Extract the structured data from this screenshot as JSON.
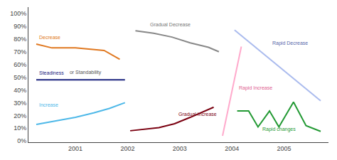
{
  "chart_data": {
    "type": "line",
    "xlim": [
      2000.1,
      2005.85
    ],
    "ylim": [
      -0.01,
      1.05
    ],
    "xticks": [
      2001,
      2002,
      2003,
      2004,
      2005
    ],
    "yticks": [
      {
        "value": 0.0,
        "label": "0%"
      },
      {
        "value": 0.1,
        "label": "10%"
      },
      {
        "value": 0.2,
        "label": "20%"
      },
      {
        "value": 0.3,
        "label": "30%"
      },
      {
        "value": 0.4,
        "label": "40%"
      },
      {
        "value": 0.5,
        "label": "50%"
      },
      {
        "value": 0.6,
        "label": "60%"
      },
      {
        "value": 0.7,
        "label": "70%"
      },
      {
        "value": 0.8,
        "label": "80%"
      },
      {
        "value": 0.9,
        "label": "90%"
      },
      {
        "value": 1.0,
        "label": "100%"
      }
    ],
    "grid": false,
    "series": [
      {
        "color": "#e07820",
        "x": [
          2000.25,
          2000.55,
          2001.0,
          2001.3,
          2001.55,
          2001.85
        ],
        "values": [
          0.76,
          0.73,
          0.73,
          0.72,
          0.71,
          0.64
        ]
      },
      {
        "color": "#1a237e",
        "x": [
          2000.25,
          2001.95
        ],
        "values": [
          0.48,
          0.48
        ]
      },
      {
        "color": "#4db8e8",
        "x": [
          2000.25,
          2000.65,
          2001.0,
          2001.35,
          2001.65,
          2001.95
        ],
        "values": [
          0.13,
          0.16,
          0.185,
          0.22,
          0.255,
          0.3
        ]
      },
      {
        "color": "#888888",
        "x": [
          2002.15,
          2002.5,
          2002.85,
          2003.2,
          2003.55,
          2003.75
        ],
        "values": [
          0.865,
          0.845,
          0.815,
          0.77,
          0.735,
          0.7
        ]
      },
      {
        "color": "#7a0010",
        "x": [
          2002.05,
          2002.3,
          2002.6,
          2002.9,
          2003.2,
          2003.65
        ],
        "values": [
          0.08,
          0.09,
          0.105,
          0.135,
          0.185,
          0.265
        ]
      },
      {
        "color": "#ffaacc",
        "x": [
          2003.82,
          2004.18
        ],
        "values": [
          0.04,
          0.74
        ]
      },
      {
        "color": "#aabbee",
        "x": [
          2004.05,
          2005.7
        ],
        "values": [
          0.87,
          0.315
        ]
      },
      {
        "color": "#229933",
        "x": [
          2004.1,
          2004.32,
          2004.5,
          2004.72,
          2004.9,
          2005.18,
          2005.42,
          2005.7
        ],
        "values": [
          0.235,
          0.235,
          0.11,
          0.235,
          0.11,
          0.305,
          0.12,
          0.075
        ]
      }
    ],
    "annotations": [
      {
        "text": "Decrease",
        "x": 2000.28,
        "y": 0.78,
        "color": "#e07820"
      },
      {
        "text": "Steadiness",
        "x": 2000.28,
        "y": 0.505,
        "color": "#1a237e"
      },
      {
        "text": " or Standability",
        "x": 2000.83,
        "y": 0.505,
        "color": "#555555"
      },
      {
        "text": "Increase",
        "x": 2000.28,
        "y": 0.25,
        "color": "#4db8e8"
      },
      {
        "text": "Gradual Decrease",
        "x": 2002.4,
        "y": 0.88,
        "color": "#777777"
      },
      {
        "text": "Gradual Increase",
        "x": 2002.95,
        "y": 0.18,
        "color": "#7a0010"
      },
      {
        "text": "Rapid Increase",
        "x": 2004.1,
        "y": 0.38,
        "color": "#e06090"
      },
      {
        "text": "Rapid Decrease",
        "x": 2004.75,
        "y": 0.73,
        "color": "#5566aa"
      },
      {
        "text": "Rapid changes",
        "x": 2004.55,
        "y": 0.055,
        "color": "#229933"
      }
    ]
  }
}
